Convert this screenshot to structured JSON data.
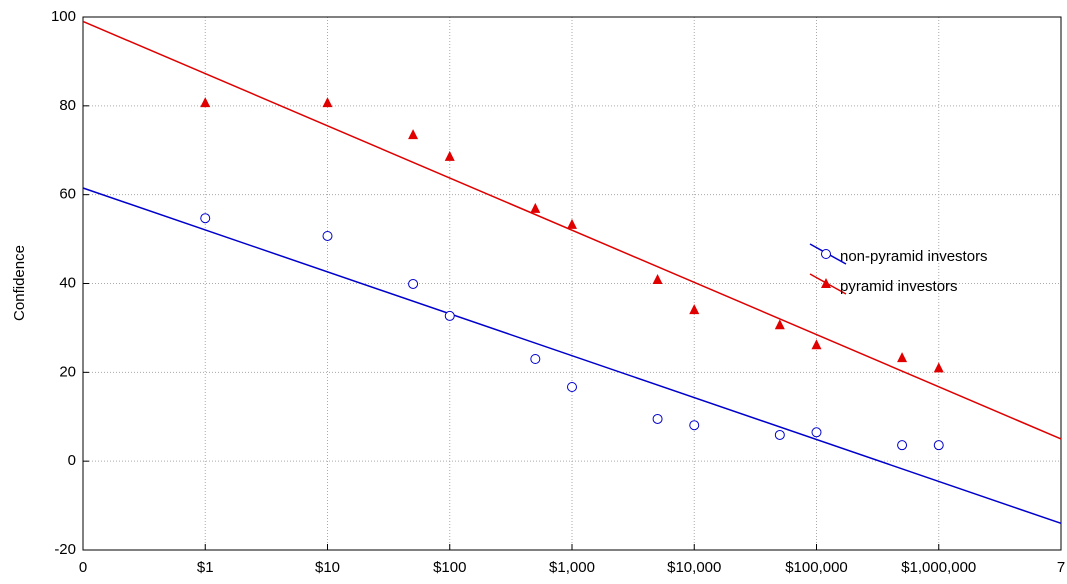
{
  "chart_data": {
    "type": "scatter",
    "y_label": "Confidence",
    "xlim": [
      0,
      8
    ],
    "ylim": [
      -20,
      100
    ],
    "xticks": [
      0,
      {
        "value": 1,
        "label": "$1"
      },
      {
        "value": 2,
        "label": "$10"
      },
      {
        "value": 3,
        "label": "$100"
      },
      {
        "value": 4,
        "label": "$1,000"
      },
      {
        "value": 5,
        "label": "$10,000"
      },
      {
        "value": 6,
        "label": "$100,000"
      },
      {
        "value": 7,
        "label": "$1,000,000"
      },
      {
        "value": 8,
        "label": "7"
      }
    ],
    "yticks": [
      -20,
      0,
      20,
      40,
      60,
      80,
      100
    ],
    "grid": true,
    "x": [
      1,
      2,
      2.7,
      3,
      3.7,
      4,
      4.7,
      5,
      5.7,
      6,
      6.7,
      7
    ],
    "series": [
      {
        "name": "non-pyramid investors",
        "color": "#0000cc",
        "marker": "circle",
        "values": [
          54.7,
          50.7,
          39.9,
          32.7,
          23,
          16.7,
          9.5,
          8.1,
          5.9,
          6.5,
          3.6,
          3.6
        ],
        "fit": [
          61.5,
          -14
        ]
      },
      {
        "name": "pyramid investors",
        "color": "#e00000",
        "marker": "triangle",
        "values": [
          80.6,
          80.6,
          73.4,
          68.5,
          56.8,
          53.2,
          40.8,
          34,
          30.6,
          26.1,
          23.2,
          20.9
        ],
        "fit": [
          99,
          5
        ]
      }
    ]
  }
}
